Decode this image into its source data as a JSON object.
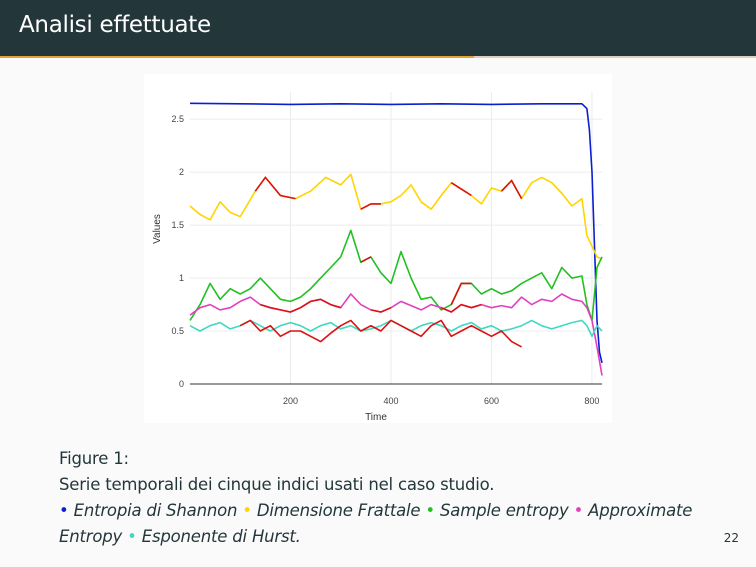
{
  "slide": {
    "title": "Analisi effettuate",
    "page_number": "22"
  },
  "caption": {
    "figure_label": "Figure 1:",
    "description": "Serie temporali dei cinque indici usati nel caso studio.",
    "legend": [
      {
        "label": "Entropia di Shannon",
        "color": "#0a1fd0",
        "separator": " "
      },
      {
        "label": "Dimensione Frattale",
        "color": "#ffd400",
        "separator": "  "
      },
      {
        "label": "Sample entropy",
        "color": "#22c022",
        "separator": "  "
      },
      {
        "label": "Approximate Entropy",
        "color": "#e040c0",
        "separator": " "
      },
      {
        "label": "Esponente di Hurst.",
        "color": "#40d8c0",
        "separator": ""
      }
    ]
  },
  "chart_data": {
    "type": "line",
    "xlabel": "Time",
    "ylabel": "Values",
    "xlim": [
      0,
      820
    ],
    "ylim": [
      0,
      2.7
    ],
    "x_ticks": [
      200,
      400,
      600,
      800
    ],
    "y_ticks": [
      0,
      0.5,
      1,
      1.5,
      2,
      2.5
    ],
    "y_tick_labels": [
      "0",
      "0.5",
      "1",
      "1.5",
      "2",
      "2.5"
    ],
    "grid": true,
    "highlight_color": "#dd1111",
    "series": [
      {
        "name": "Entropia di Shannon",
        "color": "#0a1fd0",
        "x": [
          0,
          100,
          200,
          300,
          400,
          500,
          600,
          700,
          780,
          790,
          795,
          800,
          805,
          810,
          815,
          820
        ],
        "y": [
          2.65,
          2.645,
          2.64,
          2.645,
          2.64,
          2.645,
          2.64,
          2.645,
          2.645,
          2.6,
          2.4,
          2.0,
          1.3,
          0.6,
          0.3,
          0.2
        ],
        "highlight_ranges": [
          [
            105,
            260
          ],
          [
            395,
            470
          ],
          [
            530,
            655
          ]
        ]
      },
      {
        "name": "Dimensione Frattale",
        "color": "#ffd400",
        "x": [
          0,
          20,
          40,
          60,
          80,
          100,
          130,
          150,
          180,
          210,
          240,
          270,
          300,
          320,
          340,
          360,
          380,
          400,
          420,
          440,
          460,
          480,
          500,
          520,
          540,
          560,
          580,
          600,
          620,
          640,
          660,
          680,
          700,
          720,
          740,
          760,
          780,
          790,
          800,
          810,
          820
        ],
        "y": [
          1.68,
          1.6,
          1.55,
          1.72,
          1.62,
          1.58,
          1.82,
          1.95,
          1.78,
          1.75,
          1.82,
          1.95,
          1.88,
          1.98,
          1.65,
          1.7,
          1.7,
          1.72,
          1.78,
          1.88,
          1.72,
          1.65,
          1.78,
          1.9,
          1.84,
          1.78,
          1.7,
          1.85,
          1.82,
          1.92,
          1.75,
          1.9,
          1.95,
          1.9,
          1.8,
          1.68,
          1.75,
          1.4,
          1.3,
          1.2,
          1.18
        ],
        "highlight_ranges": [
          [
            105,
            235
          ],
          [
            335,
            385
          ],
          [
            510,
            575
          ],
          [
            620,
            670
          ]
        ]
      },
      {
        "name": "Sample entropy",
        "color": "#22c022",
        "x": [
          0,
          20,
          40,
          60,
          80,
          100,
          120,
          140,
          160,
          180,
          200,
          220,
          240,
          260,
          280,
          300,
          320,
          340,
          360,
          380,
          400,
          420,
          440,
          460,
          480,
          500,
          520,
          540,
          560,
          580,
          600,
          620,
          640,
          660,
          680,
          700,
          720,
          740,
          760,
          780,
          790,
          800,
          810,
          820
        ],
        "y": [
          0.6,
          0.75,
          0.95,
          0.8,
          0.9,
          0.85,
          0.9,
          1.0,
          0.9,
          0.8,
          0.78,
          0.82,
          0.9,
          1.0,
          1.1,
          1.2,
          1.45,
          1.15,
          1.2,
          1.05,
          0.95,
          1.25,
          1.0,
          0.8,
          0.82,
          0.7,
          0.75,
          0.95,
          0.95,
          0.85,
          0.9,
          0.85,
          0.88,
          0.95,
          1.0,
          1.05,
          0.9,
          1.1,
          1.0,
          1.02,
          0.75,
          0.6,
          1.1,
          1.2
        ],
        "highlight_ranges": [
          [
            330,
            375
          ],
          [
            510,
            560
          ]
        ]
      },
      {
        "name": "Approximate Entropy",
        "color": "#e040c0",
        "x": [
          0,
          20,
          40,
          60,
          80,
          100,
          120,
          140,
          160,
          180,
          200,
          220,
          240,
          260,
          280,
          300,
          320,
          340,
          360,
          380,
          400,
          420,
          440,
          460,
          480,
          500,
          520,
          540,
          560,
          580,
          600,
          620,
          640,
          660,
          680,
          700,
          720,
          740,
          760,
          780,
          790,
          800,
          810,
          820
        ],
        "y": [
          0.65,
          0.72,
          0.75,
          0.7,
          0.72,
          0.78,
          0.82,
          0.75,
          0.72,
          0.7,
          0.68,
          0.72,
          0.78,
          0.8,
          0.75,
          0.72,
          0.85,
          0.75,
          0.7,
          0.68,
          0.72,
          0.78,
          0.74,
          0.7,
          0.75,
          0.72,
          0.68,
          0.75,
          0.72,
          0.75,
          0.72,
          0.74,
          0.72,
          0.82,
          0.75,
          0.8,
          0.78,
          0.85,
          0.8,
          0.78,
          0.72,
          0.6,
          0.35,
          0.08
        ],
        "highlight_ranges": [
          [
            140,
            300
          ],
          [
            350,
            400
          ],
          [
            500,
            580
          ]
        ]
      },
      {
        "name": "Esponente di Hurst",
        "color": "#40d8c0",
        "x": [
          0,
          20,
          40,
          60,
          80,
          100,
          120,
          140,
          160,
          180,
          200,
          220,
          240,
          260,
          280,
          300,
          320,
          340,
          360,
          380,
          400,
          420,
          440,
          460,
          480,
          500,
          520,
          540,
          560,
          580,
          600,
          620,
          640,
          660,
          680,
          700,
          720,
          740,
          760,
          780,
          790,
          800,
          810,
          820
        ],
        "y": [
          0.55,
          0.5,
          0.55,
          0.58,
          0.52,
          0.55,
          0.6,
          0.55,
          0.5,
          0.55,
          0.58,
          0.55,
          0.5,
          0.55,
          0.58,
          0.52,
          0.55,
          0.5,
          0.52,
          0.55,
          0.6,
          0.55,
          0.5,
          0.55,
          0.58,
          0.55,
          0.5,
          0.55,
          0.58,
          0.52,
          0.55,
          0.5,
          0.52,
          0.55,
          0.6,
          0.55,
          0.52,
          0.55,
          0.58,
          0.6,
          0.55,
          0.45,
          0.55,
          0.5
        ],
        "highlight_ranges": []
      },
      {
        "name": "",
        "color": "#dd1111",
        "x": [
          100,
          120,
          140,
          160,
          180,
          200,
          220,
          240,
          260,
          280,
          300,
          320,
          340,
          360,
          380,
          400,
          420,
          440,
          460,
          480,
          500,
          520,
          540,
          560,
          580,
          600,
          620,
          640,
          660
        ],
        "y": [
          0.55,
          0.6,
          0.5,
          0.55,
          0.45,
          0.5,
          0.5,
          0.45,
          0.4,
          0.48,
          0.55,
          0.6,
          0.5,
          0.55,
          0.5,
          0.6,
          0.55,
          0.5,
          0.45,
          0.55,
          0.6,
          0.45,
          0.5,
          0.55,
          0.5,
          0.45,
          0.5,
          0.4,
          0.35
        ],
        "highlight_ranges": []
      }
    ]
  }
}
